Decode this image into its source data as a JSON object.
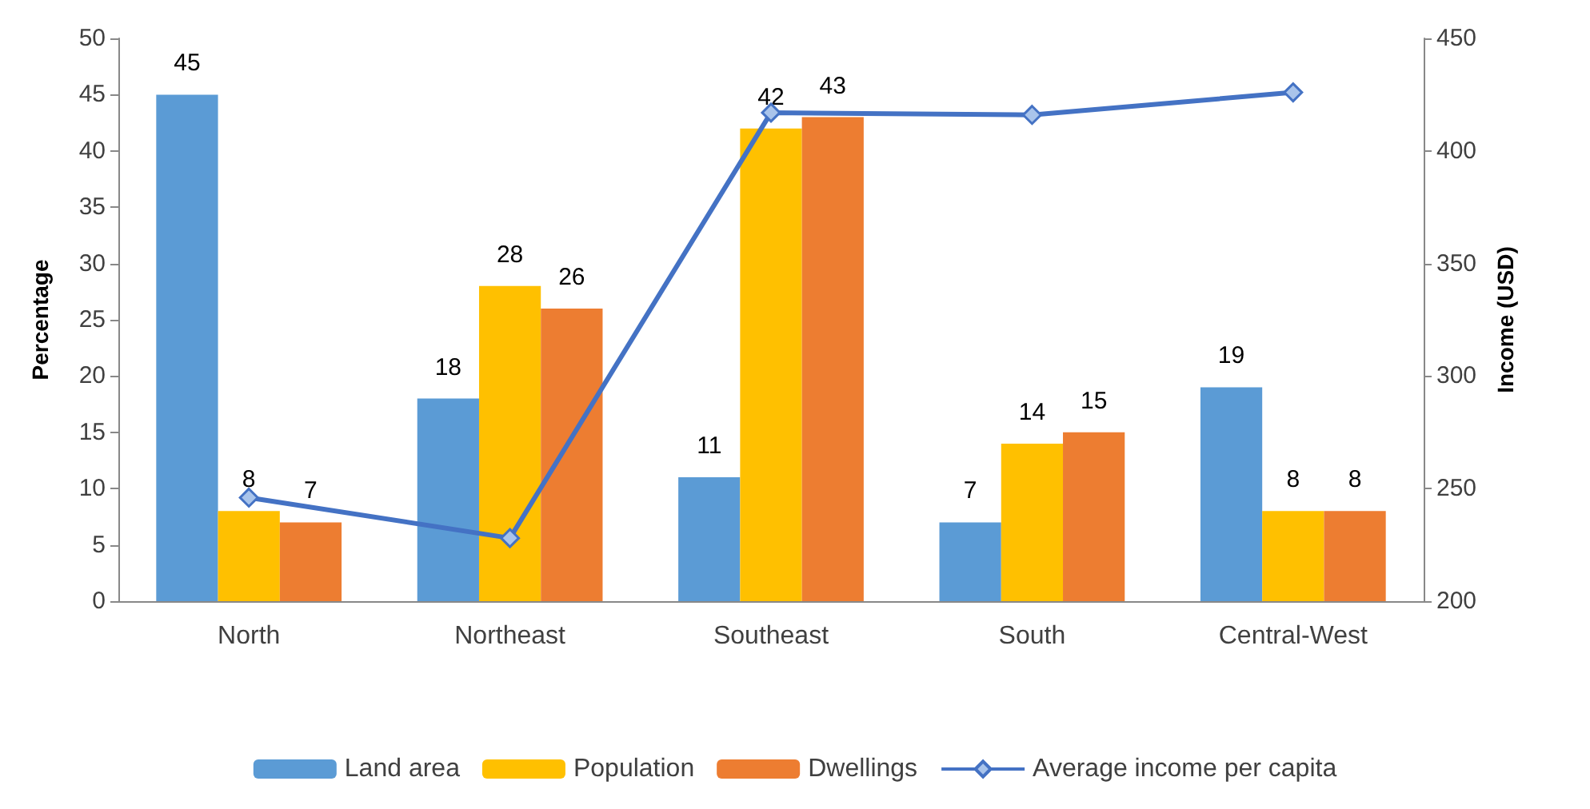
{
  "chart_data": {
    "type": "bar",
    "ylabel": "Percentage",
    "y2label": "Income (USD)",
    "categories": [
      "North",
      "Northeast",
      "Southeast",
      "South",
      "Central-West"
    ],
    "series": [
      {
        "name": "Land area",
        "color": "#5b9bd5",
        "values": [
          45,
          18,
          11,
          7,
          19
        ],
        "value_labels": [
          "45",
          "18",
          "11",
          "7",
          "19"
        ]
      },
      {
        "name": "Population",
        "color": "#ffc000",
        "values": [
          8,
          28,
          42,
          14,
          8
        ],
        "value_labels": [
          "8",
          "28",
          "42",
          "14",
          "8"
        ]
      },
      {
        "name": "Dwellings",
        "color": "#ed7d31",
        "values": [
          7,
          26,
          43,
          15,
          8
        ],
        "value_labels": [
          "7",
          "26",
          "43",
          "15",
          "8"
        ]
      },
      {
        "name": "Average income per capita",
        "type": "line",
        "axis": "y2",
        "color": "#4472c4",
        "marker": "diamond",
        "values": [
          246,
          228,
          417,
          416,
          426
        ]
      }
    ],
    "ylim": [
      0,
      50
    ],
    "yticks": [
      0,
      5,
      10,
      15,
      20,
      25,
      30,
      35,
      40,
      45,
      50
    ],
    "y2lim": [
      200,
      450
    ],
    "y2ticks": [
      200,
      250,
      300,
      350,
      400,
      450
    ],
    "grid": false,
    "legend": "bottom"
  }
}
